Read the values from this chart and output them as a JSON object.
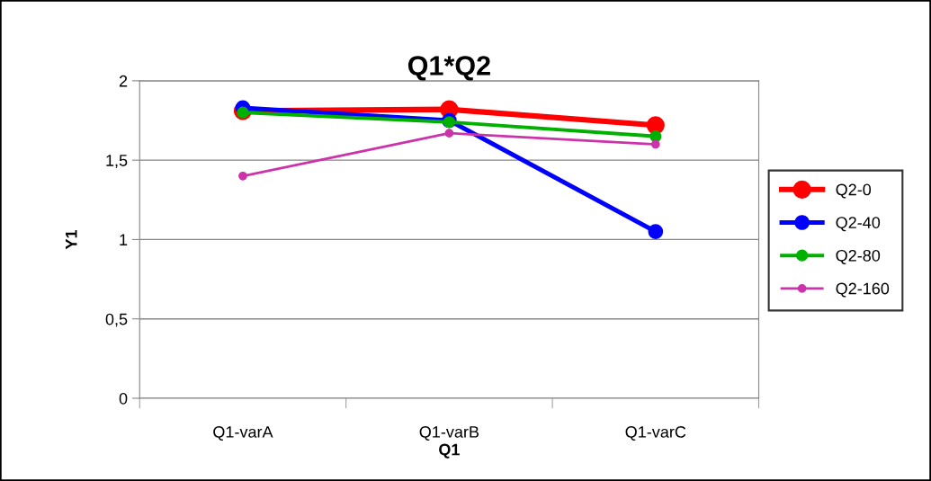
{
  "chart_data": {
    "type": "line",
    "title": "Q1*Q2",
    "xlabel": "Q1",
    "ylabel": "Y1",
    "categories": [
      "Q1-varA",
      "Q1-varB",
      "Q1-varC"
    ],
    "series": [
      {
        "name": "Q2-0",
        "color": "#ff0000",
        "values": [
          1.81,
          1.82,
          1.72
        ]
      },
      {
        "name": "Q2-40",
        "color": "#0000ff",
        "values": [
          1.83,
          1.75,
          1.05
        ]
      },
      {
        "name": "Q2-80",
        "color": "#00b000",
        "values": [
          1.8,
          1.74,
          1.65
        ]
      },
      {
        "name": "Q2-160",
        "color": "#cc33aa",
        "values": [
          1.4,
          1.67,
          1.6
        ]
      }
    ],
    "ylim": [
      0,
      2
    ],
    "yticks": [
      {
        "value": 0,
        "label": "0"
      },
      {
        "value": 0.5,
        "label": "0,5"
      },
      {
        "value": 1,
        "label": "1"
      },
      {
        "value": 1.5,
        "label": "1,5"
      },
      {
        "value": 2,
        "label": "2"
      }
    ],
    "grid": "y",
    "legend": "right",
    "marker": "circle",
    "line_style": "solid"
  }
}
